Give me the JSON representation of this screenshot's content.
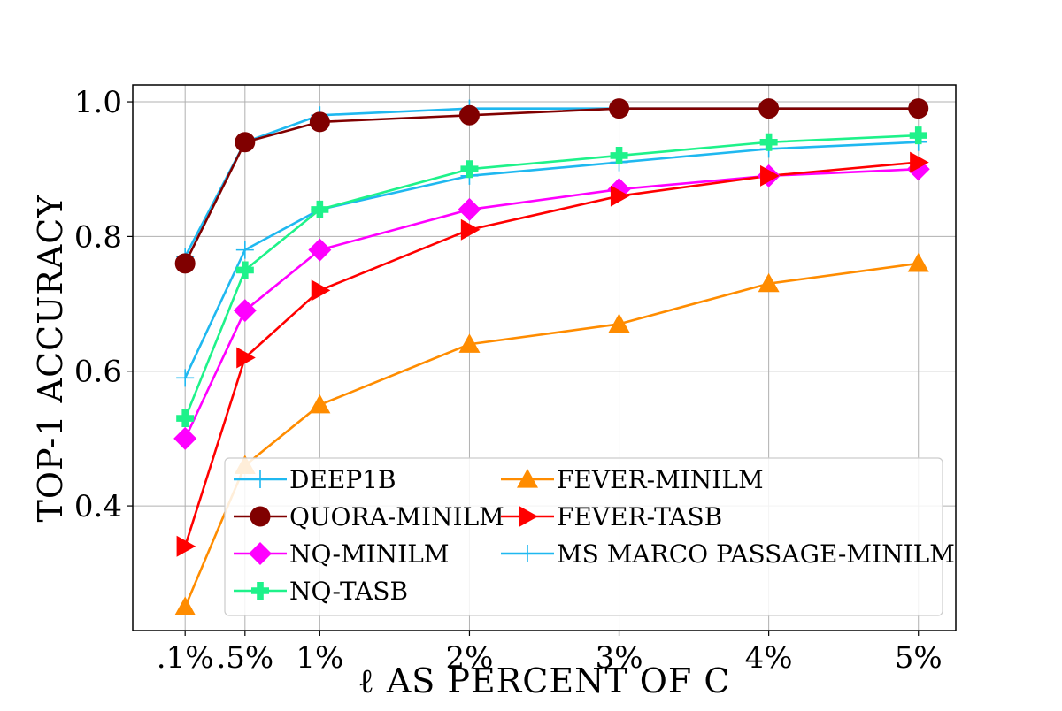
{
  "chart_data": {
    "type": "line",
    "xlabel": "ℓ  AS PERCENT OF  C",
    "ylabel": "TOP-1 ACCURACY",
    "categories": [
      ".1%",
      ".5%",
      "1%",
      "2%",
      "3%",
      "4%",
      "5%"
    ],
    "x": [
      0.1,
      0.5,
      1,
      2,
      3,
      4,
      5
    ],
    "xlim": [
      -0.25,
      5.25
    ],
    "ylim": [
      0.215,
      1.025
    ],
    "yticks": [
      0.4,
      0.6,
      0.8,
      1.0
    ],
    "ytick_labels": [
      "0.4",
      "0.6",
      "0.8",
      "1.0"
    ],
    "grid": true,
    "legend_position": "lower-right",
    "series": [
      {
        "name": "DEEP1B",
        "color": "#1fb8f0",
        "marker": "plus-thin",
        "values": [
          0.77,
          0.94,
          0.98,
          0.99,
          0.99,
          0.99,
          0.99
        ]
      },
      {
        "name": "QUORA-MINILM",
        "color": "#800000",
        "marker": "circle",
        "values": [
          0.76,
          0.94,
          0.97,
          0.98,
          0.99,
          0.99,
          0.99
        ]
      },
      {
        "name": "NQ-MINILM",
        "color": "#ff00ff",
        "marker": "diamond",
        "values": [
          0.5,
          0.69,
          0.78,
          0.84,
          0.87,
          0.89,
          0.9
        ]
      },
      {
        "name": "NQ-TASB",
        "color": "#1ef28a",
        "marker": "plus-thick",
        "values": [
          0.53,
          0.75,
          0.84,
          0.9,
          0.92,
          0.94,
          0.95
        ]
      },
      {
        "name": "FEVER-MINILM",
        "color": "#ff8c00",
        "marker": "triangle-up",
        "values": [
          0.25,
          0.46,
          0.55,
          0.64,
          0.67,
          0.73,
          0.76
        ]
      },
      {
        "name": "FEVER-TASB",
        "color": "#ff0000",
        "marker": "triangle-right",
        "values": [
          0.34,
          0.62,
          0.72,
          0.81,
          0.86,
          0.89,
          0.91
        ]
      },
      {
        "name": "MS MARCO PASSAGE-MINILM",
        "color": "#1fb8f0",
        "marker": "plus-thin",
        "values": [
          0.59,
          0.78,
          0.84,
          0.89,
          0.91,
          0.93,
          0.94
        ]
      }
    ]
  }
}
